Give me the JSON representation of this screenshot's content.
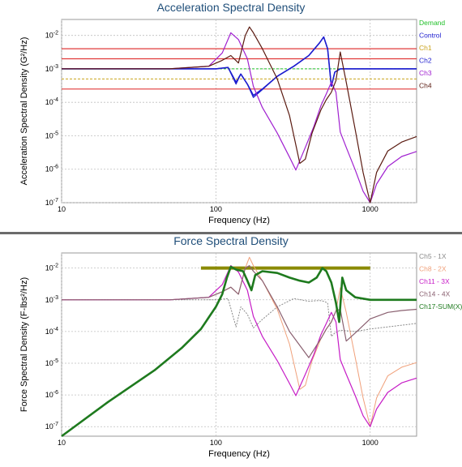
{
  "chart_data": [
    {
      "type": "line",
      "title": "Acceleration Spectral Density",
      "xlabel": "Frequency (Hz)",
      "ylabel": "Acceleration Spectral Density (G²/Hz)",
      "xscale": "log",
      "yscale": "log",
      "xlim": [
        10,
        2000
      ],
      "ylim": [
        1e-07,
        0.03
      ],
      "grid": true,
      "legend_position": "right",
      "x_ticks": [
        {
          "value": 10,
          "label": "10"
        },
        {
          "value": 100,
          "label": "100"
        },
        {
          "value": 1000,
          "label": "1000"
        }
      ],
      "y_ticks": [
        {
          "value": 1e-07,
          "base": "10",
          "exp": "-7"
        },
        {
          "value": 1e-06,
          "base": "10",
          "exp": "-6"
        },
        {
          "value": 1e-05,
          "base": "10",
          "exp": "-5"
        },
        {
          "value": 0.0001,
          "base": "10",
          "exp": "-4"
        },
        {
          "value": 0.001,
          "base": "10",
          "exp": "-3"
        },
        {
          "value": 0.01,
          "base": "10",
          "exp": "-2"
        }
      ],
      "series": [
        {
          "name": "Demand",
          "color": "#22c02a",
          "width": 1,
          "dash": "3,2",
          "x": [
            10,
            2000
          ],
          "y": [
            0.001,
            0.001
          ]
        },
        {
          "name": "Control",
          "color": "#1c1ccf",
          "width": 1.6,
          "x": [
            10,
            60,
            100,
            120,
            135,
            145,
            160,
            175,
            200,
            250,
            320,
            400,
            470,
            500,
            530,
            560,
            590,
            640,
            800,
            1000,
            2000
          ],
          "y": [
            0.001,
            0.001,
            0.001,
            0.0011,
            0.0004,
            0.0007,
            0.00035,
            0.00016,
            0.00025,
            0.0006,
            0.0012,
            0.0025,
            0.006,
            0.009,
            0.004,
            0.0003,
            0.0008,
            0.001,
            0.001,
            0.001,
            0.001
          ]
        },
        {
          "name": "Ch1",
          "color": "#c9a21a",
          "width": 1,
          "dash": "3,2",
          "x": [
            10,
            2000
          ],
          "y": [
            0.0005,
            0.0005
          ]
        },
        {
          "name": "Ch2",
          "color": "#1c1ccf",
          "width": 1.2,
          "x": [
            10,
            60,
            100,
            120,
            135,
            145,
            160,
            175,
            200,
            250,
            320,
            400,
            470,
            500,
            530,
            560,
            590,
            640,
            800,
            1000,
            2000
          ],
          "y": [
            0.001,
            0.001,
            0.001,
            0.0011,
            0.00035,
            0.0007,
            0.00035,
            0.00014,
            0.00024,
            0.0006,
            0.0012,
            0.0025,
            0.006,
            0.009,
            0.004,
            0.0003,
            0.0008,
            0.001,
            0.001,
            0.001,
            0.001
          ]
        },
        {
          "name": "Ch3",
          "color": "#a020d0",
          "width": 1.2,
          "x": [
            10,
            50,
            90,
            110,
            125,
            140,
            160,
            175,
            200,
            250,
            300,
            330,
            380,
            430,
            480,
            520,
            560,
            600,
            640,
            700,
            800,
            900,
            1000,
            1100,
            1300,
            1600,
            2000
          ],
          "y": [
            0.001,
            0.001,
            0.0012,
            0.003,
            0.012,
            0.0075,
            0.002,
            0.0003,
            7e-05,
            1.2e-05,
            2.3e-06,
            9.5e-07,
            4.5e-06,
            1.8e-05,
            8e-05,
            0.00018,
            0.0004,
            0.0002,
            1.3e-05,
            4.5e-06,
            9.5e-07,
            2.2e-07,
            1e-07,
            3.6e-07,
            1.2e-06,
            2.4e-06,
            3.4e-06
          ]
        },
        {
          "name": "Ch4",
          "color": "#5a1a10",
          "width": 1.2,
          "x": [
            10,
            50,
            90,
            110,
            125,
            140,
            155,
            165,
            175,
            200,
            250,
            300,
            350,
            380,
            420,
            480,
            520,
            560,
            600,
            640,
            700,
            800,
            900,
            1000,
            1100,
            1300,
            1600,
            2000
          ],
          "y": [
            0.001,
            0.001,
            0.0012,
            0.0018,
            0.0025,
            0.0015,
            0.01,
            0.018,
            0.012,
            0.004,
            0.0005,
            4e-05,
            1.5e-06,
            2e-06,
            1.2e-05,
            6e-05,
            0.00012,
            0.0002,
            0.00045,
            0.0032,
            0.0004,
            1.5e-05,
            8e-07,
            1e-07,
            8e-07,
            3.5e-06,
            6.5e-06,
            9.5e-06
          ]
        }
      ],
      "reference_lines": [
        {
          "value": 0.004,
          "color": "#e03a3a"
        },
        {
          "value": 0.002,
          "color": "#e03a3a"
        },
        {
          "value": 0.00025,
          "color": "#e03a3a"
        }
      ]
    },
    {
      "type": "line",
      "title": "Force Spectral Density",
      "xlabel": "Frequency (Hz)",
      "ylabel": "Force Spectral Density (F-lbs²/Hz)",
      "xscale": "log",
      "yscale": "log",
      "xlim": [
        10,
        2000
      ],
      "ylim": [
        5e-08,
        0.03
      ],
      "grid": true,
      "legend_position": "right",
      "x_ticks": [
        {
          "value": 10,
          "label": "10"
        },
        {
          "value": 100,
          "label": "100"
        },
        {
          "value": 1000,
          "label": "1000"
        }
      ],
      "y_ticks": [
        {
          "value": 1e-07,
          "base": "10",
          "exp": "-7"
        },
        {
          "value": 1e-06,
          "base": "10",
          "exp": "-6"
        },
        {
          "value": 1e-05,
          "base": "10",
          "exp": "-5"
        },
        {
          "value": 0.0001,
          "base": "10",
          "exp": "-4"
        },
        {
          "value": 0.001,
          "base": "10",
          "exp": "-3"
        },
        {
          "value": 0.01,
          "base": "10",
          "exp": "-2"
        }
      ],
      "series": [
        {
          "name": "Ch5 - 1X",
          "color": "#8a8a8a",
          "width": 1,
          "dash": "2,1.5",
          "x": [
            10,
            60,
            100,
            120,
            135,
            145,
            160,
            175,
            200,
            250,
            320,
            400,
            470,
            500,
            530,
            560,
            590,
            640,
            800,
            1000,
            1300,
            2000
          ],
          "y": [
            0.001,
            0.001,
            0.001,
            0.0011,
            0.00014,
            0.0006,
            0.00035,
            0.00013,
            0.00024,
            0.0006,
            0.0011,
            0.0009,
            0.00095,
            0.0009,
            0.0008,
            7e-05,
            9e-05,
            0.00011,
            0.0001,
            0.00012,
            0.00014,
            0.00018
          ]
        },
        {
          "name": "Ch8 - 2X",
          "color": "#f0a07a",
          "width": 1,
          "x": [
            10,
            50,
            90,
            110,
            125,
            140,
            155,
            165,
            175,
            200,
            250,
            300,
            350,
            380,
            420,
            480,
            520,
            560,
            600,
            640,
            700,
            800,
            900,
            1000,
            1100,
            1300,
            1600,
            2000
          ],
          "y": [
            0.001,
            0.001,
            0.0012,
            0.0018,
            0.0025,
            0.0015,
            0.01,
            0.022,
            0.012,
            0.004,
            0.0005,
            4e-05,
            1.5e-06,
            2e-06,
            1.2e-05,
            6e-05,
            0.00012,
            0.0002,
            0.00045,
            0.0024,
            0.0004,
            1.5e-05,
            8e-07,
            1e-07,
            8e-07,
            4e-06,
            7.5e-06,
            1.05e-05
          ]
        },
        {
          "name": "Ch11 - 3X",
          "color": "#c61cc6",
          "width": 1.2,
          "x": [
            10,
            50,
            90,
            110,
            125,
            140,
            160,
            175,
            200,
            250,
            300,
            330,
            380,
            430,
            480,
            520,
            560,
            600,
            640,
            700,
            800,
            900,
            1000,
            1100,
            1300,
            1600,
            2000
          ],
          "y": [
            0.001,
            0.001,
            0.0012,
            0.003,
            0.012,
            0.0075,
            0.002,
            0.0003,
            7e-05,
            1.2e-05,
            2.3e-06,
            9.5e-07,
            4.5e-06,
            1.8e-05,
            8e-05,
            0.00018,
            0.0004,
            0.0002,
            1.3e-05,
            4.5e-06,
            9.5e-07,
            2.2e-07,
            1e-07,
            3.6e-07,
            1.2e-06,
            2.4e-06,
            3.4e-06
          ]
        },
        {
          "name": "Ch14 - 4X",
          "color": "#8a6070",
          "width": 1.2,
          "x": [
            10,
            50,
            90,
            110,
            125,
            140,
            155,
            165,
            175,
            200,
            250,
            300,
            400,
            480,
            520,
            560,
            600,
            640,
            700,
            800,
            1000,
            1300,
            1600,
            2000
          ],
          "y": [
            0.001,
            0.001,
            0.0012,
            0.0018,
            0.0025,
            0.0015,
            0.01,
            0.012,
            0.008,
            0.004,
            0.0006,
            0.0001,
            1.5e-05,
            6e-05,
            0.00012,
            0.0002,
            0.00045,
            0.0005,
            5e-05,
            9e-05,
            0.00025,
            0.0004,
            0.00046,
            0.0005
          ]
        },
        {
          "name": "Ch17-SUM(X)",
          "color": "#1e7a1e",
          "width": 2.6,
          "x": [
            10,
            20,
            40,
            60,
            80,
            100,
            110,
            118,
            125,
            135,
            150,
            160,
            170,
            180,
            200,
            250,
            300,
            350,
            400,
            450,
            490,
            520,
            560,
            600,
            630,
            660,
            700,
            800,
            1000,
            1300,
            2000
          ],
          "y": [
            5e-08,
            6e-07,
            6e-06,
            3e-05,
            0.00012,
            0.0006,
            0.0015,
            0.005,
            0.011,
            0.009,
            0.008,
            0.004,
            0.002,
            0.006,
            0.008,
            0.007,
            0.005,
            0.004,
            0.0035,
            0.005,
            0.01,
            0.008,
            0.0035,
            0.0008,
            0.0002,
            0.005,
            0.002,
            0.0012,
            0.001,
            0.001,
            0.001
          ]
        }
      ],
      "reference_lines": [
        {
          "value": 0.01,
          "color": "#8a8a00",
          "x_from": 80,
          "x_to": 1000
        }
      ]
    }
  ]
}
